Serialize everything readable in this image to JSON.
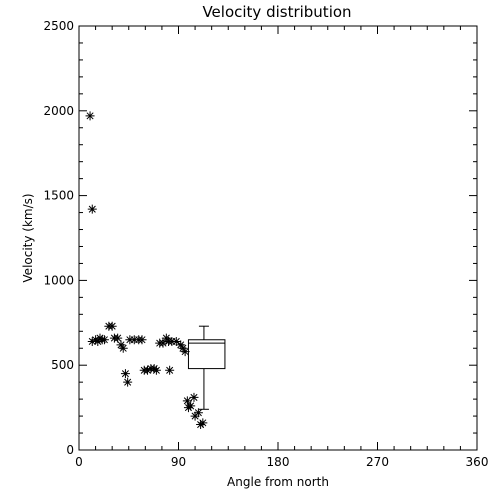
{
  "chart_data": {
    "type": "scatter",
    "title": "Velocity distribution",
    "xlabel": "Angle from north",
    "ylabel": "Velocity (km/s)",
    "xlim": [
      0,
      360
    ],
    "ylim": [
      0,
      2500
    ],
    "xticks": [
      0,
      90,
      180,
      270,
      360
    ],
    "yticks": [
      0,
      500,
      1000,
      1500,
      2000,
      2500
    ],
    "grid": false,
    "marker": "asterisk",
    "series": [
      {
        "points": [
          [
            10,
            1970
          ],
          [
            12,
            1420
          ],
          [
            12,
            640
          ],
          [
            15,
            650
          ],
          [
            17,
            640
          ],
          [
            19,
            660
          ],
          [
            21,
            650
          ],
          [
            23,
            650
          ],
          [
            27,
            730
          ],
          [
            30,
            730
          ],
          [
            32,
            660
          ],
          [
            35,
            660
          ],
          [
            38,
            620
          ],
          [
            40,
            600
          ],
          [
            42,
            450
          ],
          [
            44,
            400
          ],
          [
            46,
            650
          ],
          [
            50,
            650
          ],
          [
            54,
            650
          ],
          [
            57,
            650
          ],
          [
            59,
            470
          ],
          [
            62,
            470
          ],
          [
            65,
            480
          ],
          [
            68,
            480
          ],
          [
            70,
            470
          ],
          [
            73,
            630
          ],
          [
            76,
            630
          ],
          [
            79,
            660
          ],
          [
            81,
            640
          ],
          [
            84,
            640
          ],
          [
            88,
            640
          ],
          [
            82,
            470
          ],
          [
            92,
            620
          ],
          [
            94,
            600
          ],
          [
            96,
            580
          ],
          [
            98,
            290
          ],
          [
            99,
            250
          ],
          [
            101,
            260
          ],
          [
            104,
            310
          ],
          [
            105,
            200
          ],
          [
            108,
            220
          ],
          [
            110,
            150
          ],
          [
            112,
            160
          ]
        ]
      }
    ],
    "boxplot": {
      "x_range": [
        99,
        132
      ],
      "whisker_x": 113,
      "min": 240,
      "q1": 480,
      "median": 630,
      "q3": 650,
      "max": 730
    }
  }
}
